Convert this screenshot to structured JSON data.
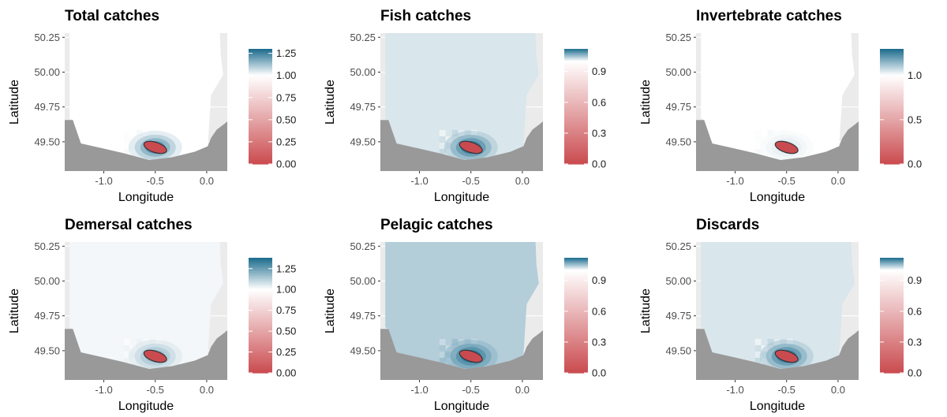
{
  "chart_data": [
    {
      "type": "heatmap",
      "title": "Total catches",
      "xlabel": "Longitude",
      "ylabel": "Latitude",
      "xticks": [
        "-1.0",
        "-0.5",
        "0.0"
      ],
      "xtick_values": [
        -1.0,
        -0.5,
        0.0
      ],
      "yticks": [
        "50.25",
        "50.00",
        "49.75",
        "49.50"
      ],
      "ytick_values": [
        50.25,
        50.0,
        49.75,
        49.5
      ],
      "xlim": [
        -1.38,
        0.2
      ],
      "ylim": [
        49.29,
        50.28
      ],
      "legend": {
        "ticks": [
          "1.25",
          "1.00",
          "0.75",
          "0.50",
          "0.25",
          "0.00"
        ],
        "tick_values": [
          1.25,
          1.0,
          0.75,
          0.5,
          0.25,
          0.0
        ],
        "range": [
          0.0,
          1.3
        ],
        "position": "right"
      },
      "background_value": 1.0,
      "hotspot": {
        "lon": -0.5,
        "lat": 49.46,
        "value": 0.0,
        "halo_value": 1.25
      }
    },
    {
      "type": "heatmap",
      "title": "Fish catches",
      "xlabel": "Longitude",
      "ylabel": "Latitude",
      "xticks": [
        "-1.0",
        "-0.5",
        "0.0"
      ],
      "xtick_values": [
        -1.0,
        -0.5,
        0.0
      ],
      "yticks": [
        "50.25",
        "50.00",
        "49.75",
        "49.50"
      ],
      "ytick_values": [
        50.25,
        50.0,
        49.75,
        49.5
      ],
      "xlim": [
        -1.38,
        0.2
      ],
      "ylim": [
        49.29,
        50.28
      ],
      "legend": {
        "ticks": [
          "0.9",
          "0.6",
          "0.3",
          "0.0"
        ],
        "tick_values": [
          0.9,
          0.6,
          0.3,
          0.0
        ],
        "range": [
          0.0,
          1.12
        ],
        "position": "right"
      },
      "background_value": 1.02,
      "hotspot": {
        "lon": -0.5,
        "lat": 49.46,
        "value": 0.0,
        "halo_value": 1.12
      }
    },
    {
      "type": "heatmap",
      "title": "Invertebrate catches",
      "xlabel": "Longitude",
      "ylabel": "Latitude",
      "xticks": [
        "-1.0",
        "-0.5",
        "0.0"
      ],
      "xtick_values": [
        -1.0,
        -0.5,
        0.0
      ],
      "yticks": [
        "50.25",
        "50.00",
        "49.75",
        "49.50"
      ],
      "ytick_values": [
        50.25,
        50.0,
        49.75,
        49.5
      ],
      "xlim": [
        -1.38,
        0.2
      ],
      "ylim": [
        49.29,
        50.28
      ],
      "legend": {
        "ticks": [
          "1.0",
          "0.5",
          "0.0"
        ],
        "tick_values": [
          1.0,
          0.5,
          0.0
        ],
        "range": [
          0.0,
          1.3
        ],
        "position": "right"
      },
      "background_value": 1.0,
      "hotspot": {
        "lon": -0.5,
        "lat": 49.46,
        "value": 0.0,
        "halo_value": 1.05
      }
    },
    {
      "type": "heatmap",
      "title": "Demersal catches",
      "xlabel": "Longitude",
      "ylabel": "Latitude",
      "xticks": [
        "-1.0",
        "-0.5",
        "0.0"
      ],
      "xtick_values": [
        -1.0,
        -0.5,
        0.0
      ],
      "yticks": [
        "50.25",
        "50.00",
        "49.75",
        "49.50"
      ],
      "ytick_values": [
        50.25,
        50.0,
        49.75,
        49.5
      ],
      "xlim": [
        -1.38,
        0.2
      ],
      "ylim": [
        49.29,
        50.28
      ],
      "legend": {
        "ticks": [
          "1.25",
          "1.00",
          "0.75",
          "0.50",
          "0.25",
          "0.00"
        ],
        "tick_values": [
          1.25,
          1.0,
          0.75,
          0.5,
          0.25,
          0.0
        ],
        "range": [
          0.0,
          1.38
        ],
        "position": "right"
      },
      "background_value": 1.02,
      "hotspot": {
        "lon": -0.5,
        "lat": 49.46,
        "value": 0.0,
        "halo_value": 1.2
      }
    },
    {
      "type": "heatmap",
      "title": "Pelagic catches",
      "xlabel": "Longitude",
      "ylabel": "Latitude",
      "xticks": [
        "-1.0",
        "-0.5",
        "0.0"
      ],
      "xtick_values": [
        -1.0,
        -0.5,
        0.0
      ],
      "yticks": [
        "50.25",
        "50.00",
        "49.75",
        "49.50"
      ],
      "ytick_values": [
        50.25,
        50.0,
        49.75,
        49.5
      ],
      "xlim": [
        -1.38,
        0.2
      ],
      "ylim": [
        49.29,
        50.28
      ],
      "legend": {
        "ticks": [
          "0.9",
          "0.6",
          "0.3",
          "0.0"
        ],
        "tick_values": [
          0.9,
          0.6,
          0.3,
          0.0
        ],
        "range": [
          0.0,
          1.12
        ],
        "position": "right"
      },
      "background_value": 1.04,
      "hotspot": {
        "lon": -0.5,
        "lat": 49.46,
        "value": 0.0,
        "halo_value": 1.12
      }
    },
    {
      "type": "heatmap",
      "title": "Discards",
      "xlabel": "Longitude",
      "ylabel": "Latitude",
      "xticks": [
        "-1.0",
        "-0.5",
        "0.0"
      ],
      "xtick_values": [
        -1.0,
        -0.5,
        0.0
      ],
      "yticks": [
        "50.25",
        "50.00",
        "49.75",
        "49.50"
      ],
      "ytick_values": [
        50.25,
        50.0,
        49.75,
        49.5
      ],
      "xlim": [
        -1.38,
        0.2
      ],
      "ylim": [
        49.29,
        50.28
      ],
      "legend": {
        "ticks": [
          "0.9",
          "0.6",
          "0.3",
          "0.0"
        ],
        "tick_values": [
          0.9,
          0.6,
          0.3,
          0.0
        ],
        "range": [
          0.0,
          1.12
        ],
        "position": "right"
      },
      "background_value": 1.02,
      "hotspot": {
        "lon": -0.5,
        "lat": 49.46,
        "value": 0.0,
        "halo_value": 1.12
      }
    }
  ],
  "colors": {
    "low": "#ca4b4f",
    "mid": "#ffffff",
    "high": "#1a6a8c",
    "land": "#999999",
    "panel_background": "#ebebeb",
    "grid": "#ffffff"
  }
}
